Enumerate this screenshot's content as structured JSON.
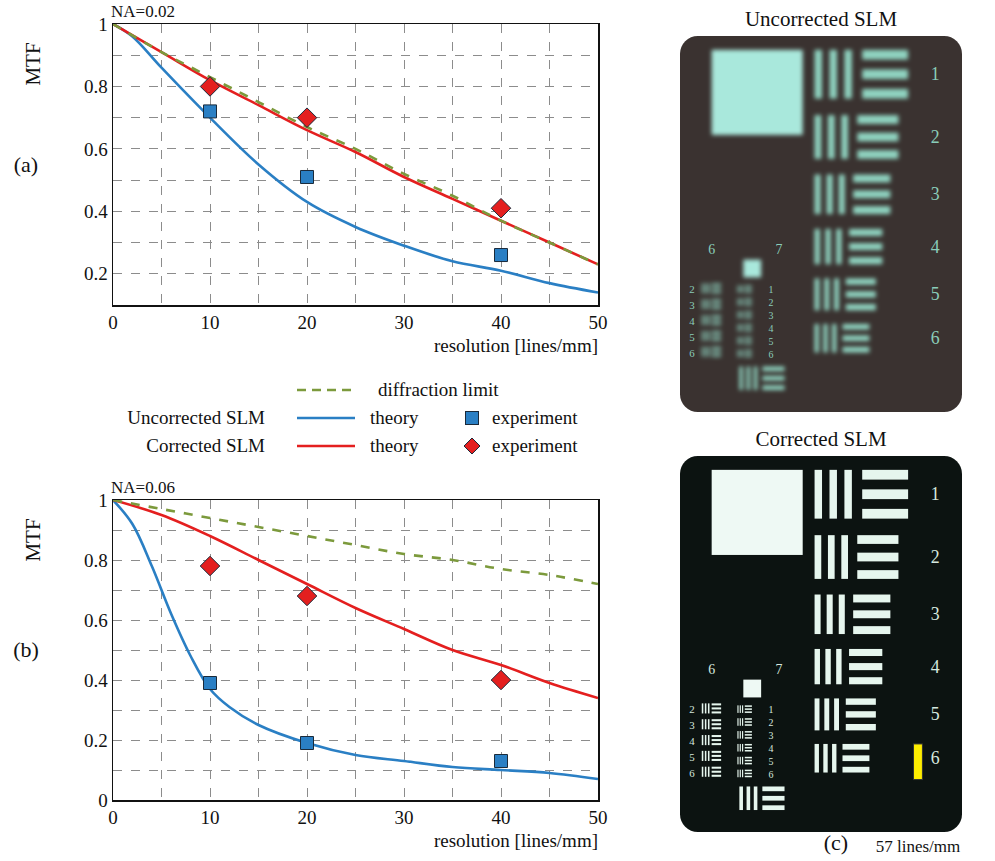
{
  "chart_data": [
    {
      "type": "line",
      "panel_label": "(a)",
      "title": "NA=0.02",
      "xlabel": "resolution [lines/mm]",
      "ylabel": "MTF",
      "xlim": [
        0,
        50
      ],
      "xticks": [
        0,
        10,
        20,
        30,
        40,
        50
      ],
      "ylim": [
        0.1,
        1
      ],
      "yticks": [
        0.2,
        0.4,
        0.6,
        0.8,
        1
      ],
      "grid": true,
      "series": [
        {
          "name": "theory",
          "group": "Uncorrected SLM",
          "type": "line",
          "line_style": "solid",
          "color": "#2a7fc4",
          "x": [
            0,
            2,
            5,
            10,
            15,
            20,
            25,
            30,
            35,
            40,
            45,
            50
          ],
          "values": [
            1,
            0.96,
            0.86,
            0.7,
            0.55,
            0.43,
            0.35,
            0.29,
            0.24,
            0.21,
            0.17,
            0.14
          ]
        },
        {
          "name": "theory",
          "group": "Corrected SLM",
          "type": "line",
          "line_style": "solid",
          "color": "#e41f1f",
          "x": [
            0,
            5,
            10,
            15,
            20,
            25,
            30,
            35,
            40,
            45,
            50
          ],
          "values": [
            1,
            0.91,
            0.82,
            0.74,
            0.66,
            0.59,
            0.51,
            0.44,
            0.37,
            0.3,
            0.23
          ]
        },
        {
          "name": "diffraction limit",
          "type": "line",
          "line_style": "dashed",
          "color": "#7c9a3c",
          "x": [
            0,
            5,
            10,
            15,
            20,
            25,
            30,
            35,
            40,
            45,
            50
          ],
          "values": [
            1,
            0.91,
            0.83,
            0.75,
            0.67,
            0.6,
            0.52,
            0.45,
            0.37,
            0.3,
            0.23
          ]
        },
        {
          "name": "experiment",
          "group": "Uncorrected SLM",
          "type": "scatter",
          "marker": "square",
          "color": "#2a7fc4",
          "x": [
            10,
            20,
            40
          ],
          "values": [
            0.72,
            0.51,
            0.26
          ]
        },
        {
          "name": "experiment",
          "group": "Corrected SLM",
          "type": "scatter",
          "marker": "diamond",
          "color": "#e41f1f",
          "x": [
            10,
            20,
            40
          ],
          "values": [
            0.8,
            0.7,
            0.41
          ]
        }
      ]
    },
    {
      "type": "line",
      "panel_label": "(b)",
      "title": "NA=0.06",
      "xlabel": "resolution [lines/mm]",
      "ylabel": "MTF",
      "xlim": [
        0,
        50
      ],
      "xticks": [
        0,
        10,
        20,
        30,
        40,
        50
      ],
      "ylim": [
        0,
        1
      ],
      "yticks": [
        0,
        0.2,
        0.4,
        0.6,
        0.8,
        1
      ],
      "grid": true,
      "series": [
        {
          "name": "theory",
          "group": "Uncorrected SLM",
          "type": "line",
          "line_style": "solid",
          "color": "#2a7fc4",
          "x": [
            0,
            2,
            4,
            6,
            8,
            10,
            12,
            15,
            20,
            25,
            30,
            35,
            40,
            45,
            50
          ],
          "values": [
            1,
            0.92,
            0.78,
            0.62,
            0.48,
            0.37,
            0.31,
            0.25,
            0.19,
            0.15,
            0.13,
            0.11,
            0.1,
            0.09,
            0.07
          ]
        },
        {
          "name": "theory",
          "group": "Corrected SLM",
          "type": "line",
          "line_style": "solid",
          "color": "#e41f1f",
          "x": [
            0,
            5,
            10,
            15,
            20,
            25,
            30,
            35,
            40,
            45,
            50
          ],
          "values": [
            1,
            0.95,
            0.88,
            0.8,
            0.72,
            0.64,
            0.57,
            0.5,
            0.45,
            0.39,
            0.34
          ]
        },
        {
          "name": "diffraction limit",
          "type": "line",
          "line_style": "dashed",
          "color": "#7c9a3c",
          "x": [
            0,
            5,
            10,
            15,
            20,
            25,
            30,
            35,
            40,
            45,
            50
          ],
          "values": [
            1,
            0.97,
            0.94,
            0.91,
            0.88,
            0.85,
            0.82,
            0.8,
            0.77,
            0.75,
            0.72
          ]
        },
        {
          "name": "experiment",
          "group": "Uncorrected SLM",
          "type": "scatter",
          "marker": "square",
          "color": "#2a7fc4",
          "x": [
            10,
            20,
            40
          ],
          "values": [
            0.39,
            0.19,
            0.13
          ]
        },
        {
          "name": "experiment",
          "group": "Corrected SLM",
          "type": "scatter",
          "marker": "diamond",
          "color": "#e41f1f",
          "x": [
            10,
            20,
            40
          ],
          "values": [
            0.78,
            0.68,
            0.4
          ]
        }
      ]
    }
  ],
  "images": {
    "panel_label": "(c)",
    "panels": [
      {
        "title": "Uncorrected SLM",
        "corrected": false
      },
      {
        "title": "Corrected SLM",
        "corrected": true,
        "marker_label": "57 lines/mm",
        "marker_color": "#ffee00"
      }
    ],
    "element_numbers": [
      "1",
      "2",
      "3",
      "4",
      "5",
      "6"
    ],
    "group_numbers": [
      "6",
      "7"
    ],
    "small_left": [
      "2",
      "3",
      "4",
      "5",
      "6"
    ],
    "small_right": [
      "1",
      "2",
      "3",
      "4",
      "5",
      "6"
    ]
  }
}
